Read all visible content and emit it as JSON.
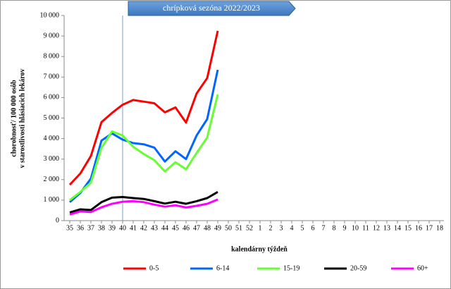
{
  "chart_data": {
    "type": "line",
    "banner": "chrípková sezóna 2022/2023",
    "xlabel": "kalendárny týždeň",
    "ylabel": [
      "chorobnosť/ 100 000 osôb",
      "v starostlivosti hlásiacich lekárov"
    ],
    "categories": [
      "35",
      "36",
      "37",
      "38",
      "39",
      "40",
      "41",
      "42",
      "43",
      "44",
      "45",
      "46",
      "47",
      "48",
      "49",
      "50",
      "51",
      "52",
      "1",
      "2",
      "3",
      "4",
      "5",
      "6",
      "7",
      "8",
      "9",
      "10",
      "11",
      "12",
      "13",
      "14",
      "15",
      "16",
      "17",
      "18"
    ],
    "ylim": [
      0,
      10000
    ],
    "yticks": [
      0,
      {
        "value": 1000,
        "label": "1 000"
      },
      {
        "value": 2000,
        "label": "2 000"
      },
      {
        "value": 3000,
        "label": "3 000"
      },
      {
        "value": 4000,
        "label": "4 000"
      },
      {
        "value": 5000,
        "label": "5 000"
      },
      {
        "value": 6000,
        "label": "6 000"
      },
      {
        "value": 7000,
        "label": "7 000"
      },
      {
        "value": 8000,
        "label": "8 000"
      },
      {
        "value": 9000,
        "label": "9 000"
      },
      {
        "value": 10000,
        "label": "10 000"
      }
    ],
    "grid": false,
    "legend": "bottom",
    "series": [
      {
        "name": "0-5",
        "color": "#ff0000",
        "values": [
          1750,
          2300,
          3150,
          4800,
          5250,
          5650,
          5880,
          5800,
          5720,
          5280,
          5520,
          4780,
          6200,
          6950,
          9250,
          null,
          null,
          null,
          null,
          null,
          null,
          null,
          null,
          null,
          null,
          null,
          null,
          null,
          null,
          null,
          null,
          null,
          null,
          null,
          null,
          null
        ]
      },
      {
        "name": "6-14",
        "color": "#0066ff",
        "values": [
          900,
          1350,
          2050,
          3900,
          4250,
          3950,
          3780,
          3720,
          3560,
          2880,
          3380,
          3000,
          4150,
          4950,
          7350,
          null,
          null,
          null,
          null,
          null,
          null,
          null,
          null,
          null,
          null,
          null,
          null,
          null,
          null,
          null,
          null,
          null,
          null,
          null,
          null,
          null
        ]
      },
      {
        "name": "15-19",
        "color": "#66ff33",
        "values": [
          1000,
          1400,
          1850,
          3550,
          4350,
          4150,
          3600,
          3250,
          2950,
          2400,
          2850,
          2500,
          3300,
          4050,
          6150,
          null,
          null,
          null,
          null,
          null,
          null,
          null,
          null,
          null,
          null,
          null,
          null,
          null,
          null,
          null,
          null,
          null,
          null,
          null,
          null,
          null
        ]
      },
      {
        "name": "20-59",
        "color": "#000000",
        "values": [
          400,
          550,
          520,
          900,
          1120,
          1150,
          1100,
          1060,
          950,
          830,
          920,
          820,
          950,
          1100,
          1400,
          null,
          null,
          null,
          null,
          null,
          null,
          null,
          null,
          null,
          null,
          null,
          null,
          null,
          null,
          null,
          null,
          null,
          null,
          null,
          null,
          null
        ]
      },
      {
        "name": "60+",
        "color": "#ff00ff",
        "values": [
          300,
          450,
          420,
          650,
          820,
          920,
          950,
          900,
          780,
          680,
          750,
          640,
          720,
          820,
          1030,
          null,
          null,
          null,
          null,
          null,
          null,
          null,
          null,
          null,
          null,
          null,
          null,
          null,
          null,
          null,
          null,
          null,
          null,
          null,
          null,
          null
        ]
      }
    ]
  }
}
